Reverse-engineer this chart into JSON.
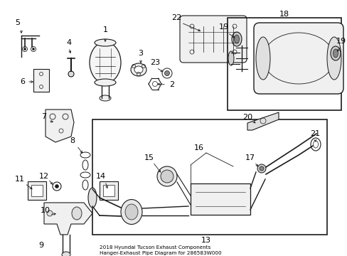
{
  "bg_color": "#ffffff",
  "line_color": "#1a1a1a",
  "title": "2018 Hyundai Tucson Exhaust Components\nHanger-Exhaust Pipe Diagram for 286583W000",
  "figsize": [
    4.89,
    3.6
  ],
  "dpi": 100
}
